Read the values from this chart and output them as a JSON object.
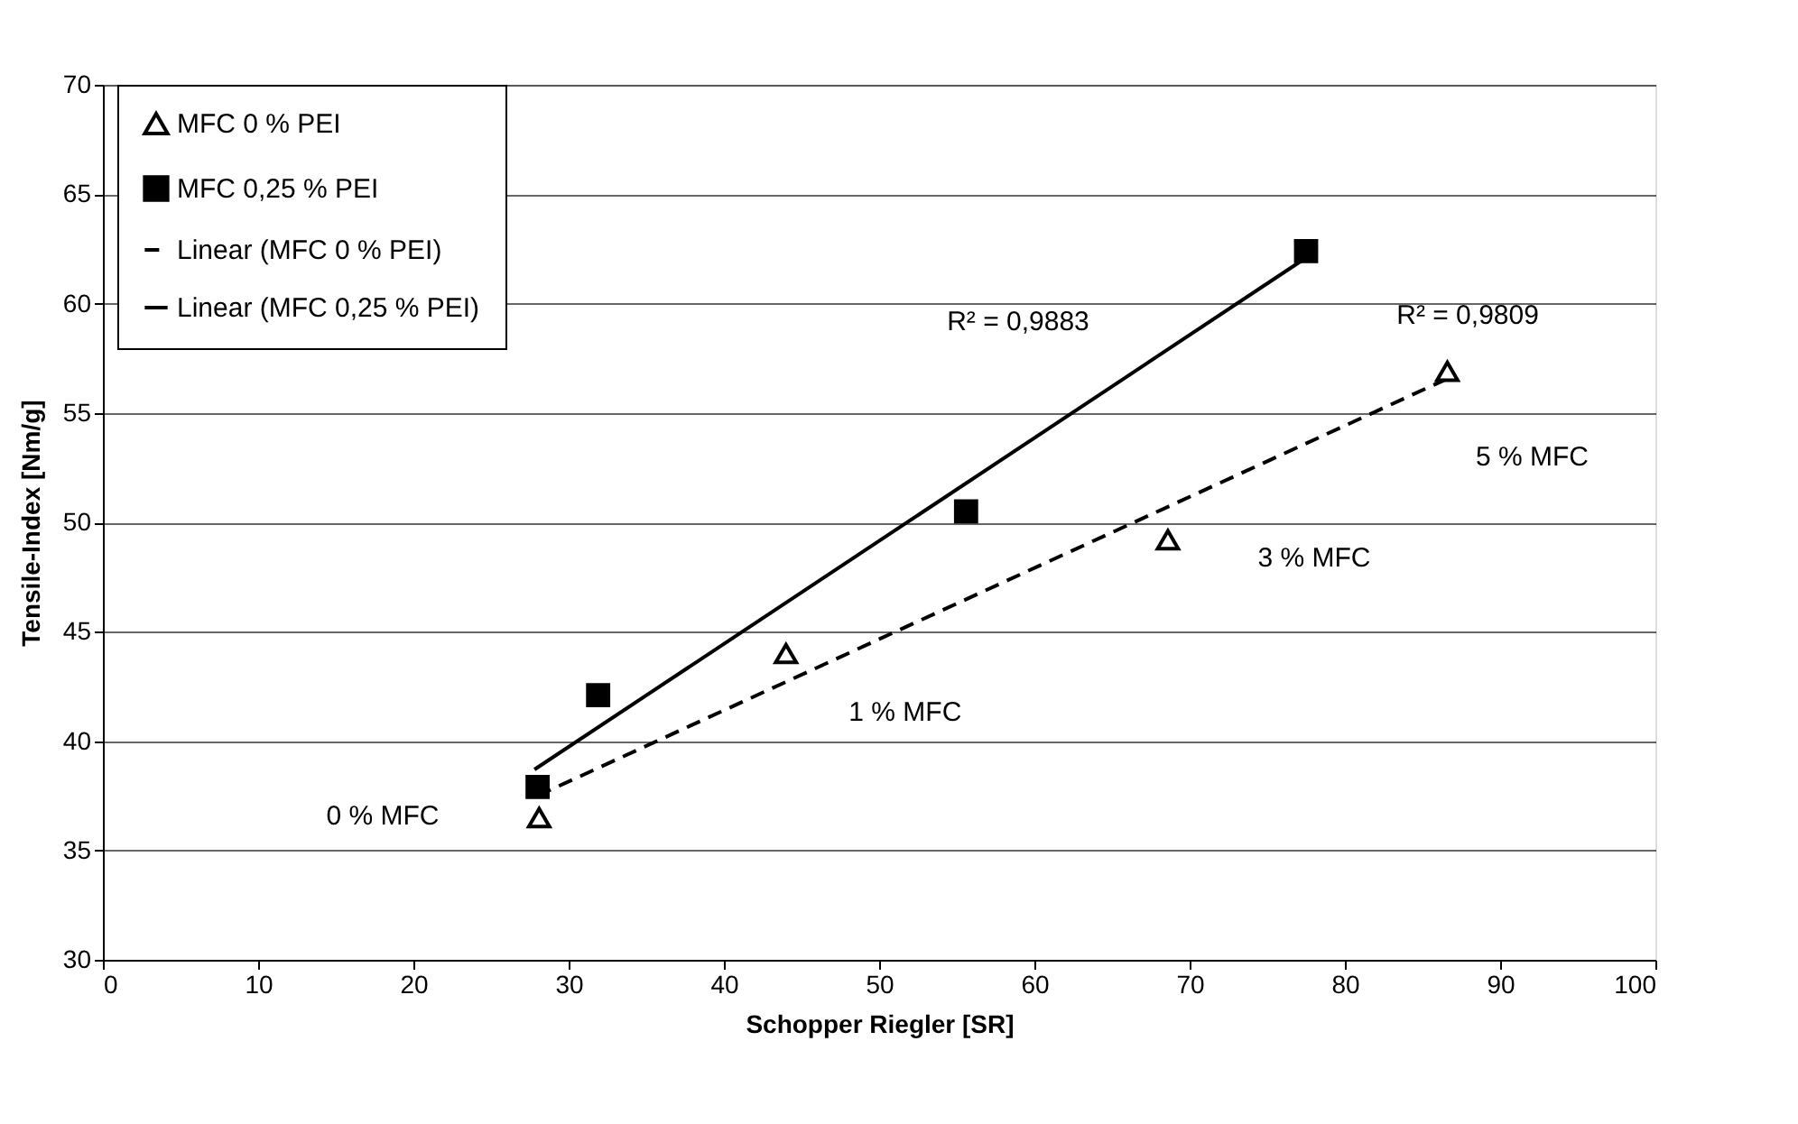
{
  "chart_data": {
    "type": "scatter",
    "xlabel": "Schopper Riegler [SR]",
    "ylabel": "Tensile-Index [Nm/g]",
    "xlim": [
      0,
      100
    ],
    "xticks": [
      0,
      10,
      20,
      30,
      40,
      50,
      60,
      70,
      80,
      90,
      100
    ],
    "ylim": [
      30,
      70
    ],
    "yticks": [
      30,
      35,
      40,
      45,
      50,
      55,
      60,
      65,
      70
    ],
    "grid": "y",
    "legend": "top left",
    "series": [
      {
        "name": "MFC 0 % PEI",
        "marker": "triangle",
        "color": "#000000",
        "x": [
          28.1,
          44.0,
          68.6,
          86.6
        ],
        "values": [
          36.5,
          44.0,
          49.2,
          56.9
        ]
      },
      {
        "name": "MFC 0,25 % PEI",
        "marker": "square",
        "color": "#000000",
        "x": [
          28.0,
          31.9,
          55.6,
          77.5
        ],
        "values": [
          37.9,
          42.1,
          50.5,
          62.4
        ]
      },
      {
        "name": "Linear (MFC 0 % PEI)",
        "type": "line",
        "line_style": "dashed",
        "color": "#000000",
        "x": [
          28.0,
          86.4
        ],
        "values": [
          37.5,
          56.5
        ]
      },
      {
        "name": "Linear (MFC 0,25 % PEI)",
        "type": "line",
        "line_style": "solid",
        "color": "#000000",
        "x": [
          27.8,
          77.3
        ],
        "values": [
          38.7,
          62.0
        ]
      }
    ],
    "annotations": [
      "0 % MFC",
      {
        "text": "1 % MFC",
        "x": 44.0,
        "y": 44.0
      },
      "3 % MFC",
      {
        "text": "5 % MFC",
        "x": 86.6,
        "y": 56.9
      },
      "R² = 0,9883",
      {
        "text": "R² = 0,9809",
        "x": 86.4,
        "y": 56.5
      }
    ]
  }
}
